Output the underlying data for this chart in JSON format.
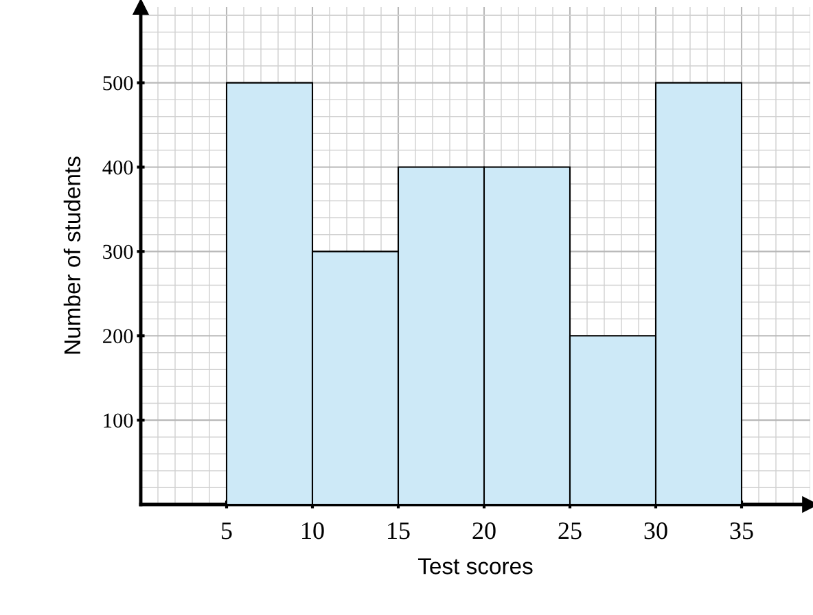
{
  "chart_data": {
    "type": "histogram",
    "xlabel": "Test scores",
    "ylabel": "Number of students",
    "bins": [
      5,
      10,
      15,
      20,
      25,
      30,
      35
    ],
    "values": [
      500,
      300,
      400,
      400,
      200,
      500
    ],
    "color": "#cde9f7",
    "xlim": [
      0,
      39
    ],
    "ylim": [
      0,
      590
    ],
    "xticks": [
      5,
      10,
      15,
      20,
      25,
      30,
      35
    ],
    "yticks": [
      100,
      200,
      300,
      400,
      500
    ],
    "grid": true
  }
}
